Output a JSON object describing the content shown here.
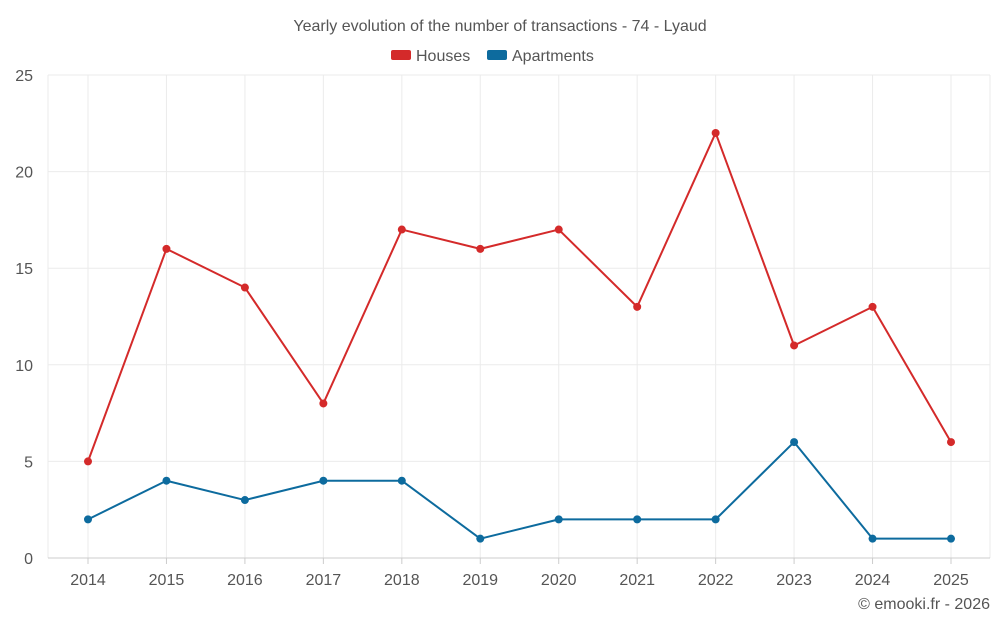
{
  "chart_data": {
    "type": "line",
    "title": "Yearly evolution of the number of transactions - 74 - Lyaud",
    "categories": [
      "2014",
      "2015",
      "2016",
      "2017",
      "2018",
      "2019",
      "2020",
      "2021",
      "2022",
      "2023",
      "2024",
      "2025"
    ],
    "series": [
      {
        "name": "Houses",
        "color": "#d42a2a",
        "values": [
          5,
          16,
          14,
          8,
          17,
          16,
          17,
          13,
          22,
          11,
          13,
          6
        ]
      },
      {
        "name": "Apartments",
        "color": "#0d6b9e",
        "values": [
          2,
          4,
          3,
          4,
          4,
          1,
          2,
          2,
          2,
          6,
          1,
          1
        ]
      }
    ],
    "ylim": [
      0,
      25
    ],
    "yticks": [
      0,
      5,
      10,
      15,
      20,
      25
    ],
    "grid": true,
    "legend": "top-center",
    "xlabel": "",
    "ylabel": ""
  },
  "credit": "© emooki.fr - 2026"
}
